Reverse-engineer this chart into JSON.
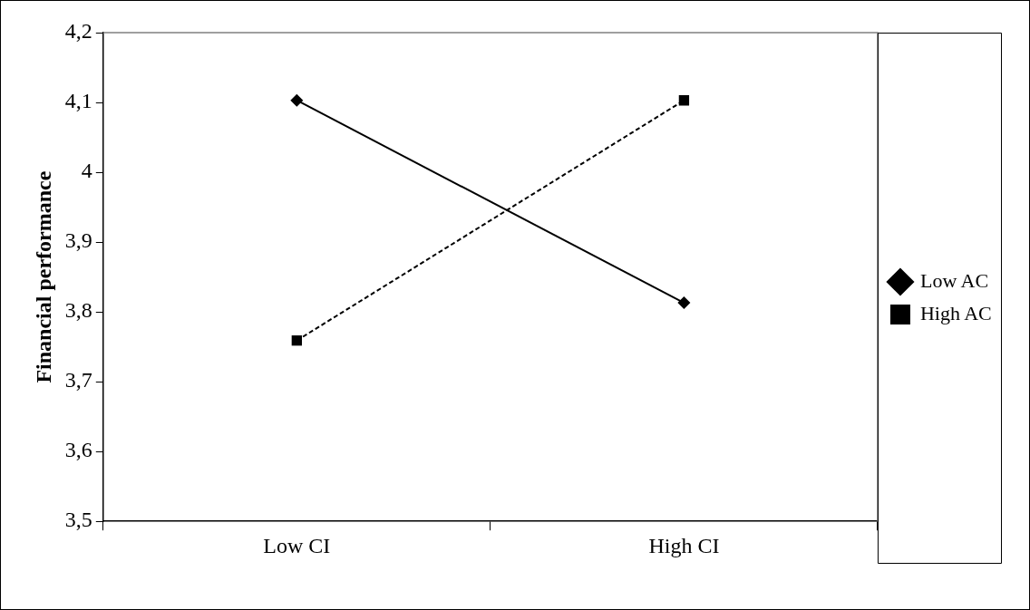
{
  "chart_data": {
    "type": "line",
    "ylabel": "Financial performance",
    "categories": [
      "Low CI",
      "High CI"
    ],
    "series": [
      {
        "name": "Low AC",
        "color": "#000000",
        "values": [
          4.103,
          3.813
        ],
        "marker": "diamond",
        "line_style": "solid"
      },
      {
        "name": "High AC",
        "color": "#000000",
        "values": [
          3.759,
          4.103
        ],
        "marker": "square",
        "line_style": "dashed"
      }
    ],
    "ylim": [
      3.5,
      4.2
    ],
    "yticks": [
      {
        "value": 3.5,
        "label": "3,5"
      },
      {
        "value": 3.6,
        "label": "3,6"
      },
      {
        "value": 3.7,
        "label": "3,7"
      },
      {
        "value": 3.8,
        "label": "3,8"
      },
      {
        "value": 3.9,
        "label": "3,9"
      },
      {
        "value": 4,
        "label": "4"
      },
      {
        "value": 4.1,
        "label": "4,1"
      },
      {
        "value": 4.2,
        "label": "4,2"
      }
    ],
    "grid": false,
    "legend": "right"
  }
}
